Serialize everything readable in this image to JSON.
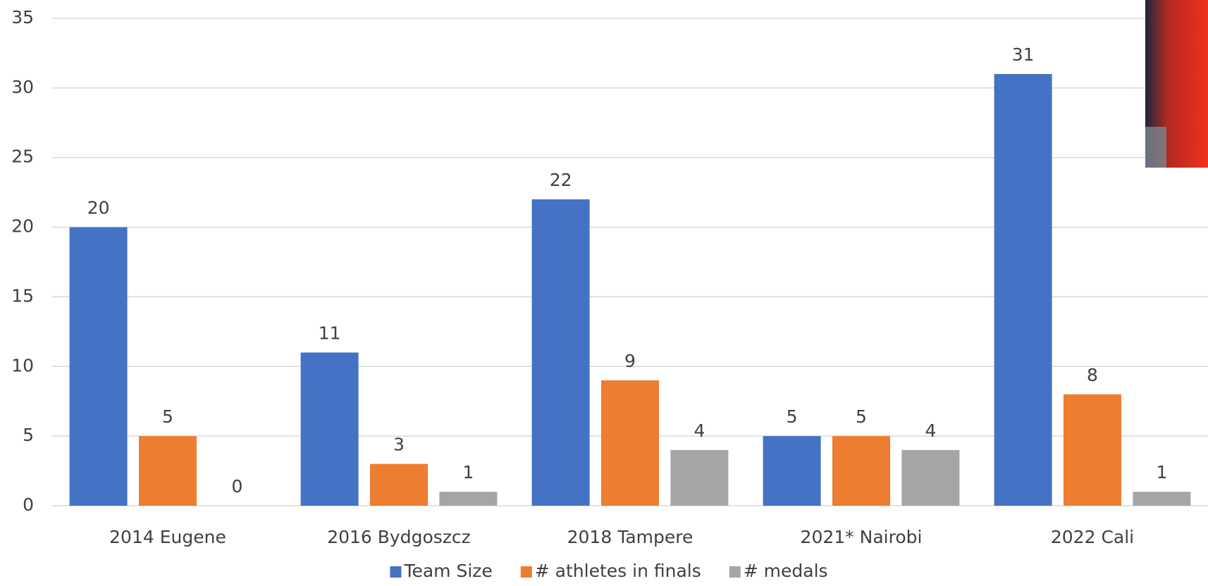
{
  "chart_data": {
    "type": "bar",
    "categories": [
      "2014 Eugene",
      "2016 Bydgoszcz",
      "2018 Tampere",
      "2021* Nairobi",
      "2022 Cali"
    ],
    "series": [
      {
        "name": "Team Size",
        "color": "#4472c4",
        "values": [
          20,
          11,
          22,
          5,
          31
        ]
      },
      {
        "name": "# athletes in finals",
        "color": "#ed7d31",
        "values": [
          5,
          3,
          9,
          5,
          8
        ]
      },
      {
        "name": "# medals",
        "color": "#a5a5a5",
        "values": [
          0,
          1,
          4,
          4,
          1
        ]
      }
    ],
    "ylim": [
      0,
      35
    ],
    "yticks": [
      0,
      5,
      10,
      15,
      20,
      25,
      30,
      35
    ],
    "grid": true,
    "legend": "bottom"
  }
}
